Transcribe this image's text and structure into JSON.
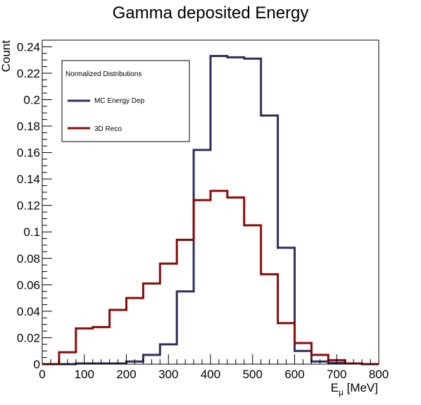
{
  "chart_data": {
    "type": "line",
    "title": "Gamma deposited Energy",
    "xlabel": {
      "base": "E",
      "sub": "μ",
      "unit": " [MeV]"
    },
    "ylabel": "Count",
    "xlim": [
      0,
      800
    ],
    "ylim": [
      0,
      0.245
    ],
    "grid": false,
    "legend_placement": "top-left",
    "legend_header": "Normalized Distributions",
    "x_ticks": [
      0,
      100,
      200,
      300,
      400,
      500,
      600,
      700,
      800
    ],
    "y_ticks": [
      0,
      0.02,
      0.04,
      0.06,
      0.08,
      0.1,
      0.12,
      0.14,
      0.16,
      0.18,
      0.2,
      0.22,
      0.24
    ],
    "y_tick_labels": [
      "0",
      "0.02",
      "0.04",
      "0.06",
      "0.08",
      "0.1",
      "0.12",
      "0.14",
      "0.16",
      "0.18",
      "0.2",
      "0.22",
      "0.24"
    ],
    "bin_edges": [
      0,
      40,
      80,
      120,
      160,
      200,
      240,
      280,
      320,
      360,
      400,
      440,
      480,
      520,
      560,
      600,
      640,
      680,
      720,
      760,
      800
    ],
    "series": [
      {
        "name": "MC Energy Dep",
        "color": "#2e2e5c",
        "values": [
          0,
          0,
          0.0005,
          0.0005,
          0.0005,
          0.002,
          0.007,
          0.015,
          0.055,
          0.162,
          0.233,
          0.232,
          0.231,
          0.188,
          0.088,
          0.01,
          0.002,
          0.001,
          0.0005,
          0
        ]
      },
      {
        "name": "3D Reco",
        "color": "#8b0a0a",
        "values": [
          0,
          0.009,
          0.027,
          0.028,
          0.041,
          0.05,
          0.061,
          0.076,
          0.094,
          0.124,
          0.131,
          0.126,
          0.105,
          0.068,
          0.031,
          0.016,
          0.007,
          0.003,
          0.0005,
          0
        ]
      }
    ]
  }
}
